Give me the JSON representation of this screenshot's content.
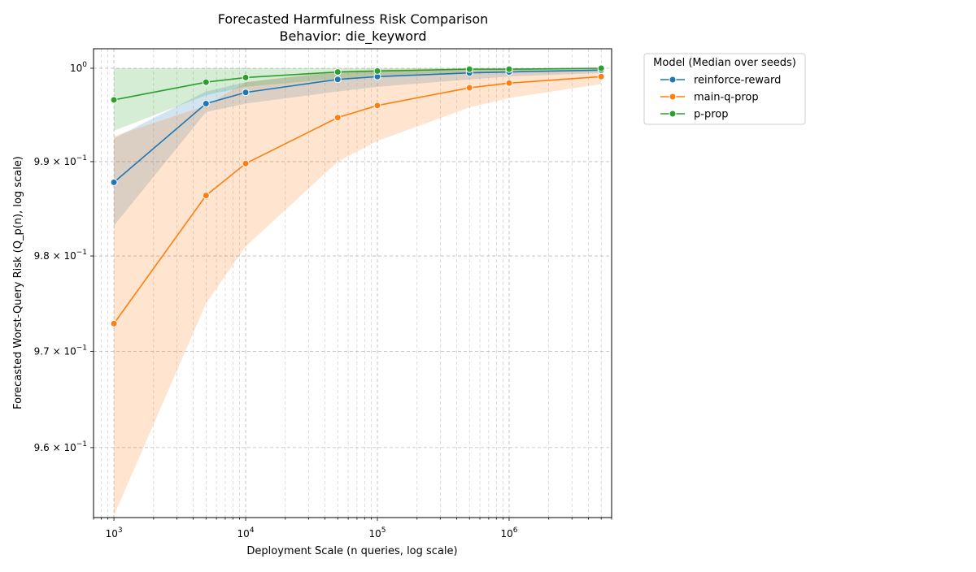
{
  "chart_data": {
    "type": "line",
    "title": "Forecasted Harmfulness Risk Comparison",
    "subtitle": "Behavior: die_keyword",
    "xlabel": "Deployment Scale (n queries, log scale)",
    "ylabel": "Forecasted Worst-Query Risk (Q_p(n), log scale)",
    "xscale": "log",
    "yscale": "log",
    "xlim": [
      700,
      6000000
    ],
    "ylim": [
      0.9528,
      1.0021
    ],
    "x_ticks": [
      {
        "value": 1000,
        "base": "10",
        "exp": "3"
      },
      {
        "value": 10000,
        "base": "10",
        "exp": "4"
      },
      {
        "value": 100000,
        "base": "10",
        "exp": "5"
      },
      {
        "value": 1000000,
        "base": "10",
        "exp": "6"
      }
    ],
    "y_ticks": [
      {
        "value": 1.0,
        "label": "10",
        "exp": "0"
      },
      {
        "value": 0.99,
        "mant": "9.9",
        "base": "10",
        "exp": "−1"
      },
      {
        "value": 0.98,
        "mant": "9.8",
        "base": "10",
        "exp": "−1"
      },
      {
        "value": 0.97,
        "mant": "9.7",
        "base": "10",
        "exp": "−1"
      },
      {
        "value": 0.96,
        "mant": "9.6",
        "base": "10",
        "exp": "−1"
      }
    ],
    "grid": true,
    "legend": {
      "title": "Model (Median over seeds)",
      "placement": "outside-right"
    },
    "x": [
      1000,
      5000,
      10000,
      50000,
      100000,
      500000,
      1000000,
      5000000
    ],
    "series": [
      {
        "name": "reinforce-reward",
        "color": "#1f77b4",
        "values": [
          0.9878,
          0.9962,
          0.9974,
          0.9988,
          0.9991,
          0.9995,
          0.9996,
          0.9998
        ],
        "lower": [
          0.9832,
          0.9953,
          0.9962,
          0.9975,
          0.998,
          0.9988,
          0.9991,
          0.9995
        ],
        "upper": [
          0.9925,
          0.9975,
          0.9985,
          0.9996,
          0.9998,
          0.9999,
          0.9999,
          1.0
        ]
      },
      {
        "name": "main-q-prop",
        "color": "#ff7f0e",
        "values": [
          0.9729,
          0.9864,
          0.9898,
          0.9947,
          0.996,
          0.9979,
          0.9984,
          0.9991
        ],
        "lower": [
          0.953,
          0.975,
          0.981,
          0.99,
          0.9922,
          0.9958,
          0.9968,
          0.9983
        ],
        "upper": [
          0.9927,
          0.996,
          0.9985,
          0.9997,
          0.9999,
          1.0,
          1.0,
          1.0
        ]
      },
      {
        "name": "p-prop",
        "color": "#2ca02c",
        "values": [
          0.9966,
          0.9985,
          0.999,
          0.9996,
          0.9997,
          0.9999,
          0.9999,
          1.0
        ],
        "lower": [
          0.9933,
          0.9971,
          0.998,
          0.9989,
          0.9992,
          0.9995,
          0.9996,
          0.9998
        ],
        "upper": [
          1.0,
          1.0,
          1.0,
          1.0,
          1.0,
          1.0,
          1.0,
          1.0
        ]
      }
    ]
  }
}
